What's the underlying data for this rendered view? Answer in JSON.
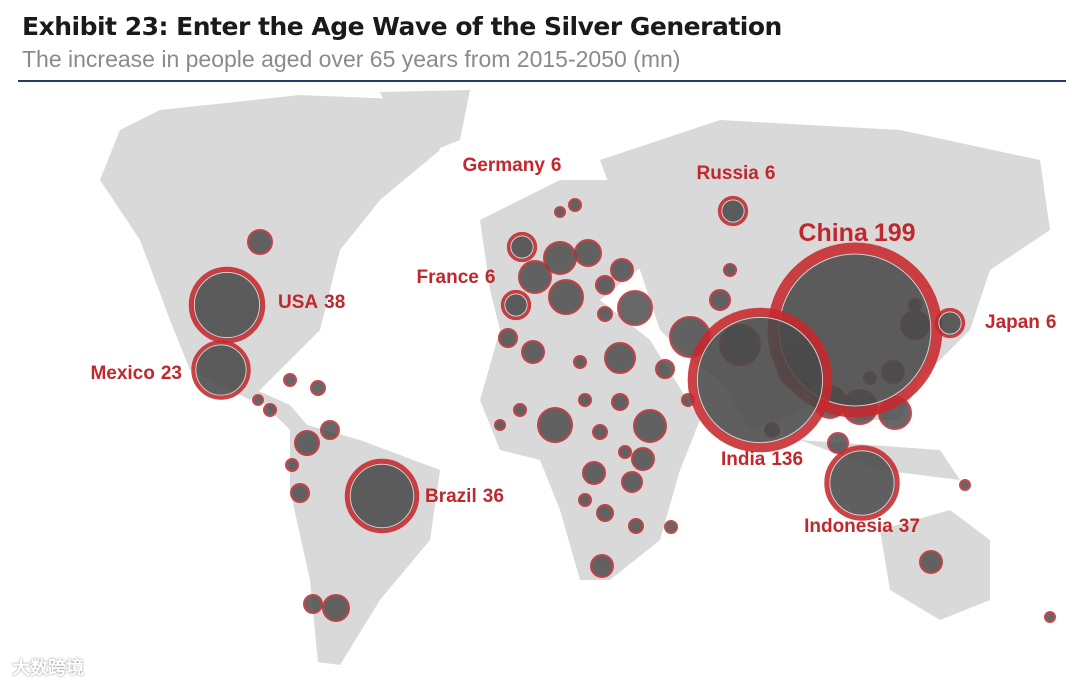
{
  "header": {
    "title": "Exhibit 23: Enter the Age Wave of the Silver Generation",
    "subtitle": "The increase in people aged over 65 years from 2015-2050 (mn)"
  },
  "bubbles": [
    {
      "name": "China",
      "value": 199
    },
    {
      "name": "India",
      "value": 136
    },
    {
      "name": "USA",
      "value": 38
    },
    {
      "name": "Indonesia",
      "value": 37
    },
    {
      "name": "Brazil",
      "value": 36
    },
    {
      "name": "Mexico",
      "value": 23
    },
    {
      "name": "Russia",
      "value": 6
    },
    {
      "name": "Japan",
      "value": 6
    },
    {
      "name": "Germany",
      "value": 6
    },
    {
      "name": "France",
      "value": 6
    }
  ],
  "watermark": "大数跨境"
}
